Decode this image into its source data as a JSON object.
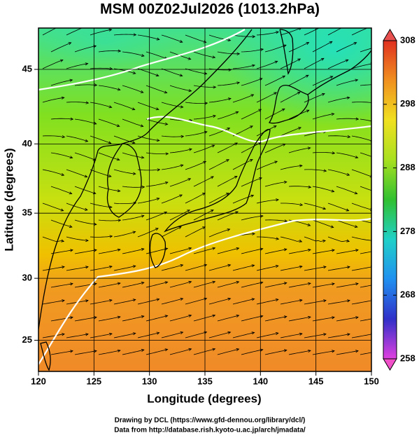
{
  "map": {
    "title": "MSM 00Z02Jul2026 (1013.2hPa)",
    "xlabel": "Longitude (degrees)",
    "ylabel": "Latitude  (degrees)",
    "projection": "mercator",
    "xlim": [
      120,
      150
    ],
    "ylim": [
      22.4,
      47.6
    ],
    "xticks": [
      120,
      125,
      130,
      135,
      140,
      145,
      150
    ],
    "yticks": [
      25,
      30,
      35,
      40,
      45
    ],
    "grid": true,
    "colorbar": {
      "lim": [
        258,
        308
      ],
      "ticks": [
        258,
        268,
        278,
        288,
        298,
        308
      ],
      "colors": [
        "#e040e0",
        "#3030c8",
        "#2090f0",
        "#20d0c8",
        "#30c030",
        "#a8e020",
        "#f0e020",
        "#f09020",
        "#e03020"
      ]
    }
  },
  "credits": [
    "Drawing by DCL (https://www.gfd-dennou.org/library/dcl/)",
    "Data from http://database.rish.kyoto-u.ac.jp/arch/jmadata/"
  ]
}
